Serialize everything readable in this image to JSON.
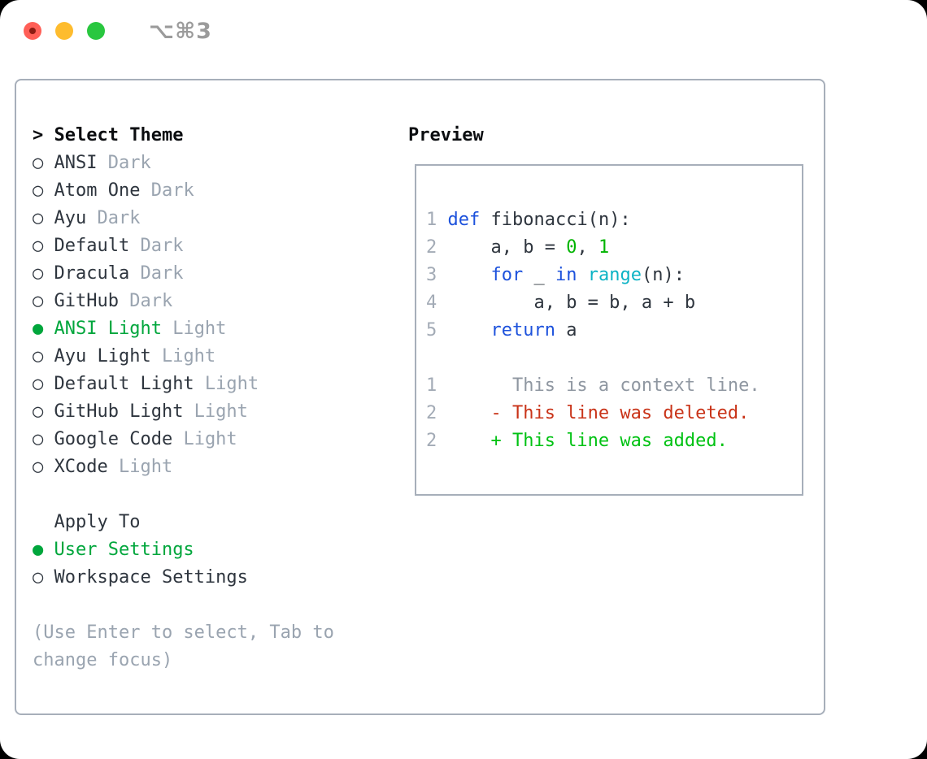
{
  "window": {
    "title": "⌥⌘3"
  },
  "colors": {
    "selection_green": "#00a63c",
    "code_number_green": "#00b400",
    "added_line_green": "#00c213",
    "deleted_line_red": "#c93318",
    "keyword_blue": "#1d52dc",
    "builtin_cyan": "#0cb3c5",
    "text_dark": "#2e353e",
    "muted_gray": "#9aa4b0",
    "border_gray": "#a7afba",
    "traffic_red": "#ff5f57",
    "traffic_yellow": "#febc2e",
    "traffic_green": "#29c73f"
  },
  "glyphs": {
    "radio_on": "●",
    "radio_off": "○",
    "cursor_prefix": ">"
  },
  "theme_panel": {
    "title": "Select Theme",
    "items": [
      {
        "label": "ANSI",
        "variant": "Dark",
        "selected": false
      },
      {
        "label": "Atom One",
        "variant": "Dark",
        "selected": false
      },
      {
        "label": "Ayu",
        "variant": "Dark",
        "selected": false
      },
      {
        "label": "Default",
        "variant": "Dark",
        "selected": false
      },
      {
        "label": "Dracula",
        "variant": "Dark",
        "selected": false
      },
      {
        "label": "GitHub",
        "variant": "Dark",
        "selected": false
      },
      {
        "label": "ANSI Light",
        "variant": "Light",
        "selected": true
      },
      {
        "label": "Ayu Light",
        "variant": "Light",
        "selected": false
      },
      {
        "label": "Default Light",
        "variant": "Light",
        "selected": false
      },
      {
        "label": "GitHub Light",
        "variant": "Light",
        "selected": false
      },
      {
        "label": "Google Code",
        "variant": "Light",
        "selected": false
      },
      {
        "label": "XCode",
        "variant": "Light",
        "selected": false
      }
    ],
    "apply_to": {
      "title": "Apply To",
      "options": [
        {
          "label": "User Settings",
          "selected": true
        },
        {
          "label": "Workspace Settings",
          "selected": false
        }
      ]
    },
    "help": "(Use Enter to select, Tab to change focus)"
  },
  "preview_panel": {
    "title": "Preview",
    "lines": [
      [
        {
          "s": "g",
          "t": "1"
        },
        {
          "s": "p",
          "t": " "
        },
        {
          "s": "k",
          "t": "def"
        },
        {
          "s": "p",
          "t": " fibonacci(n):"
        }
      ],
      [
        {
          "s": "g",
          "t": "2"
        },
        {
          "s": "p",
          "t": "     a, b = "
        },
        {
          "s": "n",
          "t": "0"
        },
        {
          "s": "p",
          "t": ", "
        },
        {
          "s": "n",
          "t": "1"
        }
      ],
      [
        {
          "s": "g",
          "t": "3"
        },
        {
          "s": "p",
          "t": "     "
        },
        {
          "s": "k",
          "t": "for"
        },
        {
          "s": "p",
          "t": " _ "
        },
        {
          "s": "k",
          "t": "in"
        },
        {
          "s": "p",
          "t": " "
        },
        {
          "s": "t",
          "t": "range"
        },
        {
          "s": "p",
          "t": "(n):"
        }
      ],
      [
        {
          "s": "g",
          "t": "4"
        },
        {
          "s": "p",
          "t": "         a, b = b, a + b"
        }
      ],
      [
        {
          "s": "g",
          "t": "5"
        },
        {
          "s": "p",
          "t": "     "
        },
        {
          "s": "k",
          "t": "return"
        },
        {
          "s": "p",
          "t": " a"
        }
      ],
      [],
      [
        {
          "s": "g",
          "t": "1"
        },
        {
          "s": "c",
          "t": "       This is a context line."
        }
      ],
      [
        {
          "s": "g",
          "t": "2"
        },
        {
          "s": "d",
          "t": "     - This line was deleted."
        }
      ],
      [
        {
          "s": "g",
          "t": "2"
        },
        {
          "s": "a",
          "t": "     + This line was added."
        }
      ]
    ]
  }
}
